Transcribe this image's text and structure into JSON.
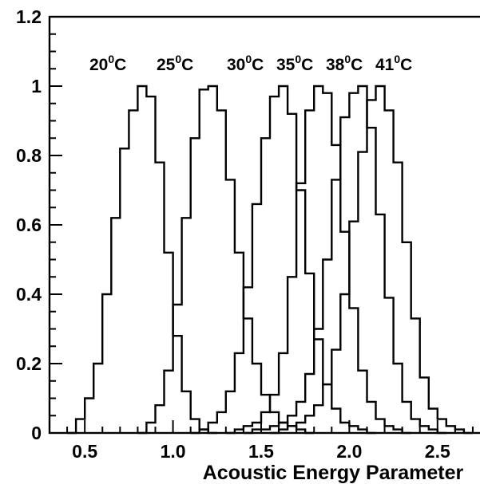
{
  "chart_data": {
    "type": "step-histogram",
    "xlabel": "Acoustic Energy Parameter",
    "ylabel": "",
    "xlim": [
      0.3,
      2.75
    ],
    "ylim": [
      0,
      1.2
    ],
    "x_ticks": [
      "0.5",
      "1.0",
      "1.5",
      "2.0",
      "2.5"
    ],
    "y_ticks": [
      "0",
      "0.2",
      "0.4",
      "0.6",
      "0.8",
      "1",
      "1.2"
    ],
    "bin_width": 0.05,
    "grid": false,
    "series": [
      {
        "name": "20°C",
        "label": {
          "base": "20",
          "sup": "0",
          "unit": "C"
        },
        "start": 0.4,
        "values": [
          0.0,
          0.04,
          0.1,
          0.2,
          0.4,
          0.62,
          0.82,
          0.93,
          1.0,
          0.97,
          0.78,
          0.52,
          0.28,
          0.12,
          0.04,
          0.01,
          0.0
        ]
      },
      {
        "name": "25°C",
        "label": {
          "base": "25",
          "sup": "0",
          "unit": "C"
        },
        "start": 0.8,
        "values": [
          0.0,
          0.03,
          0.08,
          0.18,
          0.37,
          0.62,
          0.85,
          0.99,
          1.0,
          0.93,
          0.73,
          0.52,
          0.33,
          0.2,
          0.11,
          0.06,
          0.03,
          0.02,
          0.01,
          0.0
        ]
      },
      {
        "name": "30°C",
        "label": {
          "base": "30",
          "sup": "0",
          "unit": "C"
        },
        "start": 1.1,
        "values": [
          0.0,
          0.01,
          0.03,
          0.06,
          0.12,
          0.23,
          0.42,
          0.66,
          0.85,
          0.97,
          1.0,
          0.92,
          0.7,
          0.46,
          0.27,
          0.14,
          0.07,
          0.03,
          0.02,
          0.01,
          0.0
        ]
      },
      {
        "name": "35°C",
        "label": {
          "base": "35",
          "sup": "0",
          "unit": "C"
        },
        "start": 1.3,
        "values": [
          0.0,
          0.01,
          0.02,
          0.03,
          0.06,
          0.11,
          0.23,
          0.45,
          0.72,
          0.93,
          1.0,
          0.98,
          0.83,
          0.58,
          0.36,
          0.18,
          0.09,
          0.04,
          0.02,
          0.01,
          0.0
        ]
      },
      {
        "name": "38°C",
        "label": {
          "base": "38",
          "sup": "0",
          "unit": "C"
        },
        "start": 1.4,
        "values": [
          0.0,
          0.01,
          0.01,
          0.02,
          0.03,
          0.05,
          0.09,
          0.17,
          0.3,
          0.5,
          0.73,
          0.91,
          0.98,
          1.0,
          0.88,
          0.63,
          0.39,
          0.2,
          0.09,
          0.04,
          0.02,
          0.01,
          0.0
        ]
      },
      {
        "name": "41°C",
        "label": {
          "base": "41",
          "sup": "0",
          "unit": "C"
        },
        "start": 1.55,
        "values": [
          0.0,
          0.01,
          0.02,
          0.03,
          0.05,
          0.08,
          0.14,
          0.24,
          0.4,
          0.61,
          0.81,
          0.96,
          1.0,
          0.93,
          0.78,
          0.55,
          0.33,
          0.16,
          0.07,
          0.04,
          0.02,
          0.01,
          0.0
        ]
      }
    ]
  }
}
